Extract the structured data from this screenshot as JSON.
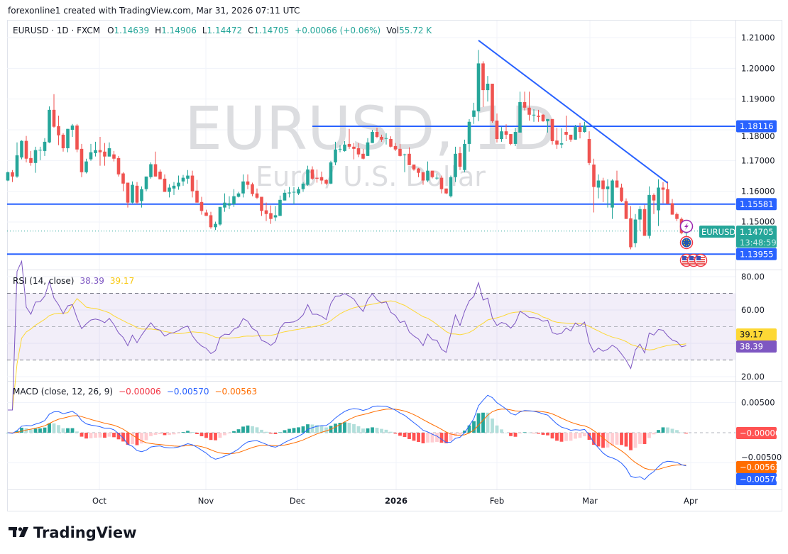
{
  "attribution": "forexonline1 created with TradingView.com, Mar 31, 2026 07:11 UTC",
  "legend": {
    "symbol": "EURUSD · 1D · FXCM",
    "o_label": "O",
    "o": "1.14639",
    "h_label": "H",
    "h": "1.14906",
    "l_label": "L",
    "l": "1.14472",
    "c_label": "C",
    "c": "1.14705",
    "change": "+0.00066 (+0.06%)",
    "vol_label": "Vol",
    "vol": "55.72 K"
  },
  "watermark": {
    "title": "EURUSD, 1D",
    "subtitle": "Euro / U.S. Dollar"
  },
  "logo": "TradingView",
  "colors": {
    "up": "#26a69a",
    "down": "#ef5350",
    "level_line": "#2962ff",
    "rsi": "#7e57c2",
    "rsi_ma": "#fdd835",
    "macd": "#2962ff",
    "signal": "#ff6d00",
    "hist_red": "#ff5252"
  },
  "event_markers": [
    {
      "icon": "lightning-icon",
      "color": "#9c27b0"
    },
    {
      "icon": "eu-flag-icon",
      "color": "#f23645"
    },
    {
      "icon": "us-flag-icon",
      "color": "#f23645"
    },
    {
      "icon": "us-flag-icon",
      "color": "#f23645"
    },
    {
      "icon": "us-flag-icon",
      "color": "#f23645"
    }
  ],
  "chart_data": [
    {
      "type": "candlestick",
      "symbol": "EURUSD",
      "x_tick_labels": [
        "Oct",
        "Nov",
        "Dec",
        "2026",
        "Feb",
        "Mar",
        "Apr"
      ],
      "y_tick_labels": [
        "1.21000",
        "1.20000",
        "1.19000",
        "1.18000",
        "1.17000",
        "1.16000",
        "1.15000"
      ],
      "ylim": [
        1.1355,
        1.2155
      ],
      "grid": true,
      "horizontal_lines": [
        {
          "price": 1.18116,
          "label": "1.18116"
        },
        {
          "price": 1.15581,
          "label": "1.15581"
        },
        {
          "price": 1.13955,
          "label": "1.13955"
        }
      ],
      "trendline": {
        "from": {
          "bar": 102,
          "price": 1.2091
        },
        "to": {
          "bar": 143,
          "price": 1.1627
        }
      },
      "current_price": {
        "symbol": "EURUSD",
        "price": 1.14705,
        "label": "1.14705",
        "countdown": "13:48:59"
      },
      "ohlc": [
        [
          1.1635,
          1.1664,
          1.1633,
          1.1662
        ],
        [
          1.1662,
          1.1669,
          1.163,
          1.1648
        ],
        [
          1.1648,
          1.1759,
          1.1644,
          1.1717
        ],
        [
          1.171,
          1.1766,
          1.1704,
          1.1764
        ],
        [
          1.1764,
          1.178,
          1.1694,
          1.1706
        ],
        [
          1.1708,
          1.1731,
          1.1683,
          1.1692
        ],
        [
          1.1692,
          1.1745,
          1.166,
          1.1734
        ],
        [
          1.1734,
          1.1745,
          1.1701,
          1.1735
        ],
        [
          1.1731,
          1.1773,
          1.1715,
          1.1761
        ],
        [
          1.1759,
          1.1876,
          1.1757,
          1.1865
        ],
        [
          1.1865,
          1.1916,
          1.1807,
          1.181
        ],
        [
          1.1812,
          1.1846,
          1.175,
          1.1782
        ],
        [
          1.1784,
          1.1789,
          1.1729,
          1.174
        ],
        [
          1.174,
          1.1803,
          1.1727,
          1.1803
        ],
        [
          1.18,
          1.1819,
          1.1777,
          1.1814
        ],
        [
          1.1814,
          1.1819,
          1.1727,
          1.1736
        ],
        [
          1.1738,
          1.1754,
          1.1646,
          1.1662
        ],
        [
          1.1662,
          1.1706,
          1.1658,
          1.1697
        ],
        [
          1.1704,
          1.1754,
          1.1699,
          1.1727
        ],
        [
          1.1724,
          1.1761,
          1.1713,
          1.1734
        ],
        [
          1.1734,
          1.1777,
          1.1683,
          1.1727
        ],
        [
          1.1729,
          1.1757,
          1.1683,
          1.1713
        ],
        [
          1.1713,
          1.1759,
          1.1713,
          1.174
        ],
        [
          1.172,
          1.1731,
          1.1697,
          1.1706
        ],
        [
          1.1708,
          1.1715,
          1.1648,
          1.1655
        ],
        [
          1.1658,
          1.1662,
          1.16,
          1.1625
        ],
        [
          1.1628,
          1.1628,
          1.1547,
          1.1563
        ],
        [
          1.1563,
          1.1632,
          1.1561,
          1.1621
        ],
        [
          1.1618,
          1.163,
          1.1558,
          1.1563
        ],
        [
          1.1568,
          1.1616,
          1.1547,
          1.1607
        ],
        [
          1.1607,
          1.1648,
          1.16,
          1.1648
        ],
        [
          1.1646,
          1.1694,
          1.1641,
          1.1688
        ],
        [
          1.1688,
          1.1729,
          1.1648,
          1.1648
        ],
        [
          1.1664,
          1.1671,
          1.1639,
          1.1639
        ],
        [
          1.1641,
          1.1655,
          1.1598,
          1.1598
        ],
        [
          1.1598,
          1.1623,
          1.158,
          1.1612
        ],
        [
          1.1609,
          1.163,
          1.1588,
          1.1618
        ],
        [
          1.1616,
          1.1651,
          1.1605,
          1.1628
        ],
        [
          1.1632,
          1.1653,
          1.1618,
          1.1644
        ],
        [
          1.1641,
          1.1669,
          1.1625,
          1.1651
        ],
        [
          1.1651,
          1.1667,
          1.158,
          1.16
        ],
        [
          1.1602,
          1.1637,
          1.1563,
          1.1563
        ],
        [
          1.1565,
          1.1582,
          1.1524,
          1.1536
        ],
        [
          1.1531,
          1.154,
          1.152,
          1.152
        ],
        [
          1.1522,
          1.1533,
          1.1478,
          1.1483
        ],
        [
          1.1483,
          1.1501,
          1.1474,
          1.1494
        ],
        [
          1.1492,
          1.1549,
          1.1488,
          1.1549
        ],
        [
          1.1547,
          1.1593,
          1.1533,
          1.1563
        ],
        [
          1.1554,
          1.1584,
          1.1542,
          1.1561
        ],
        [
          1.1558,
          1.1607,
          1.1549,
          1.1584
        ],
        [
          1.1582,
          1.1598,
          1.158,
          1.1593
        ],
        [
          1.1593,
          1.1655,
          1.158,
          1.1632
        ],
        [
          1.1632,
          1.1655,
          1.1607,
          1.1621
        ],
        [
          1.1623,
          1.1628,
          1.1584,
          1.1591
        ],
        [
          1.1593,
          1.1609,
          1.1575,
          1.1579
        ],
        [
          1.1582,
          1.1582,
          1.152,
          1.1536
        ],
        [
          1.1538,
          1.1563,
          1.1503,
          1.1526
        ],
        [
          1.1529,
          1.1554,
          1.1494,
          1.151
        ],
        [
          1.1515,
          1.1552,
          1.1503,
          1.1522
        ],
        [
          1.152,
          1.1586,
          1.152,
          1.1572
        ],
        [
          1.157,
          1.1605,
          1.157,
          1.1595
        ],
        [
          1.1593,
          1.1614,
          1.158,
          1.1596
        ],
        [
          1.1596,
          1.1614,
          1.1558,
          1.1598
        ],
        [
          1.1593,
          1.1614,
          1.1588,
          1.1607
        ],
        [
          1.1607,
          1.163,
          1.1598,
          1.1625
        ],
        [
          1.1621,
          1.1683,
          1.1618,
          1.1671
        ],
        [
          1.1671,
          1.1681,
          1.1637,
          1.1641
        ],
        [
          1.1644,
          1.1671,
          1.1628,
          1.1641
        ],
        [
          1.1646,
          1.1664,
          1.1623,
          1.1635
        ],
        [
          1.1637,
          1.1639,
          1.1621,
          1.1625
        ],
        [
          1.1625,
          1.1699,
          1.1623,
          1.1694
        ],
        [
          1.1694,
          1.1761,
          1.1685,
          1.1736
        ],
        [
          1.1736,
          1.175,
          1.1727,
          1.1738
        ],
        [
          1.1731,
          1.1763,
          1.1729,
          1.1752
        ],
        [
          1.1754,
          1.1803,
          1.1738,
          1.1745
        ],
        [
          1.1745,
          1.1757,
          1.1704,
          1.1738
        ],
        [
          1.174,
          1.1757,
          1.1711,
          1.172
        ],
        [
          1.1722,
          1.1738,
          1.1704,
          1.1706
        ],
        [
          1.1715,
          1.1773,
          1.1715,
          1.1759
        ],
        [
          1.1757,
          1.18,
          1.1757,
          1.1793
        ],
        [
          1.1793,
          1.1807,
          1.1773,
          1.1777
        ],
        [
          1.1777,
          1.1784,
          1.1761,
          1.1768
        ],
        [
          1.1772,
          1.1789,
          1.1752,
          1.1773
        ],
        [
          1.177,
          1.1779,
          1.1743,
          1.1745
        ],
        [
          1.1747,
          1.1757,
          1.1731,
          1.1736
        ],
        [
          1.1738,
          1.1754,
          1.1713,
          1.1715
        ],
        [
          1.1718,
          1.1722,
          1.1662,
          1.172
        ],
        [
          1.1722,
          1.1743,
          1.1685,
          1.1685
        ],
        [
          1.1687,
          1.1687,
          1.1667,
          1.1671
        ],
        [
          1.1674,
          1.1676,
          1.1646,
          1.166
        ],
        [
          1.1662,
          1.1662,
          1.1621,
          1.1635
        ],
        [
          1.1635,
          1.1697,
          1.163,
          1.1667
        ],
        [
          1.1667,
          1.1667,
          1.1642,
          1.1646
        ],
        [
          1.1644,
          1.1658,
          1.1637,
          1.1644
        ],
        [
          1.1644,
          1.1651,
          1.1593,
          1.1607
        ],
        [
          1.1609,
          1.1609,
          1.1591,
          1.1593
        ],
        [
          1.1584,
          1.1651,
          1.158,
          1.1646
        ],
        [
          1.1646,
          1.1745,
          1.163,
          1.1722
        ],
        [
          1.1724,
          1.1745,
          1.1669,
          1.168
        ],
        [
          1.1669,
          1.1768,
          1.1662,
          1.1754
        ],
        [
          1.1754,
          1.1835,
          1.1729,
          1.1826
        ],
        [
          1.1842,
          1.1888,
          1.1819,
          1.1863
        ],
        [
          1.186,
          1.206,
          1.1828,
          1.2016
        ],
        [
          1.2016,
          1.2023,
          1.1874,
          1.1929
        ],
        [
          1.1929,
          1.1975,
          1.1892,
          1.195
        ],
        [
          1.195,
          1.195,
          1.1823,
          1.1828
        ],
        [
          1.183,
          1.1853,
          1.1759,
          1.177
        ],
        [
          1.177,
          1.1809,
          1.1761,
          1.1795
        ],
        [
          1.1795,
          1.1818,
          1.177,
          1.1784
        ],
        [
          1.1786,
          1.1786,
          1.175,
          1.1754
        ],
        [
          1.1754,
          1.1807,
          1.1747,
          1.1793
        ],
        [
          1.1791,
          1.1924,
          1.1791,
          1.189
        ],
        [
          1.189,
          1.1924,
          1.1863,
          1.1872
        ],
        [
          1.1872,
          1.1924,
          1.183,
          1.1849
        ],
        [
          1.1849,
          1.1867,
          1.1826,
          1.1849
        ],
        [
          1.1846,
          1.1865,
          1.1826,
          1.1842
        ],
        [
          1.1849,
          1.1851,
          1.1826,
          1.1828
        ],
        [
          1.1828,
          1.1835,
          1.1791,
          1.1835
        ],
        [
          1.1835,
          1.1835,
          1.1752,
          1.1763
        ],
        [
          1.1765,
          1.1807,
          1.1738,
          1.1752
        ],
        [
          1.1752,
          1.1805,
          1.174,
          1.1756
        ],
        [
          1.1793,
          1.1846,
          1.1763,
          1.1784
        ],
        [
          1.1784,
          1.1784,
          1.1761,
          1.1768
        ],
        [
          1.1768,
          1.1816,
          1.1768,
          1.1809
        ],
        [
          1.1809,
          1.1823,
          1.1772,
          1.1793
        ],
        [
          1.1793,
          1.1826,
          1.1791,
          1.1814
        ],
        [
          1.177,
          1.1795,
          1.1685,
          1.1692
        ],
        [
          1.1687,
          1.1706,
          1.1531,
          1.1614
        ],
        [
          1.1612,
          1.1655,
          1.1577,
          1.1635
        ],
        [
          1.1635,
          1.1644,
          1.1565,
          1.1607
        ],
        [
          1.1607,
          1.1639,
          1.1547,
          1.1616
        ],
        [
          1.1547,
          1.1639,
          1.151,
          1.1635
        ],
        [
          1.1635,
          1.1667,
          1.1612,
          1.1612
        ],
        [
          1.1612,
          1.1625,
          1.1565,
          1.1568
        ],
        [
          1.1568,
          1.1577,
          1.151,
          1.151
        ],
        [
          1.1512,
          1.1552,
          1.1411,
          1.1418
        ],
        [
          1.1431,
          1.1526,
          1.1418,
          1.1508
        ],
        [
          1.1508,
          1.1552,
          1.1471,
          1.1542
        ],
        [
          1.1542,
          1.1556,
          1.1455,
          1.1455
        ],
        [
          1.1455,
          1.1616,
          1.1446,
          1.1588
        ],
        [
          1.1588,
          1.1593,
          1.1526,
          1.157
        ],
        [
          1.1538,
          1.1639,
          1.1487,
          1.1612
        ],
        [
          1.1612,
          1.163,
          1.1561,
          1.1605
        ],
        [
          1.1607,
          1.1632,
          1.1559,
          1.1559
        ],
        [
          1.1561,
          1.1575,
          1.1524,
          1.1524
        ],
        [
          1.1526,
          1.1531,
          1.1503,
          1.151
        ],
        [
          1.151,
          1.1515,
          1.146,
          1.1464
        ],
        [
          1.14639,
          1.14906,
          1.14472,
          1.14705
        ]
      ]
    },
    {
      "type": "line",
      "title": "RSI (14, close)",
      "series": [
        {
          "value": 38.39,
          "label": "38.39"
        },
        {
          "value": 39.17,
          "label": "39.17"
        }
      ],
      "y_tick_labels": [
        "80.00",
        "60.00",
        "20.00"
      ],
      "ylim": [
        17.4,
        83.8
      ],
      "bands": {
        "upper": 70,
        "middle": 50,
        "lower": 30
      }
    },
    {
      "type": "line",
      "title": "MACD (close, 12, 26, 9)",
      "params": {
        "fast": 12,
        "slow": 26,
        "signal": 9
      },
      "series": [
        {
          "value": -6e-05,
          "label": "−0.00006"
        },
        {
          "value": -0.0057,
          "label": "−0.00570"
        },
        {
          "value": -0.00563,
          "label": "−0.00563"
        }
      ],
      "y_tick_labels": [
        "0.00500",
        "−0.00500"
      ],
      "ylim": [
        -0.0129,
        0.0085
      ]
    }
  ]
}
